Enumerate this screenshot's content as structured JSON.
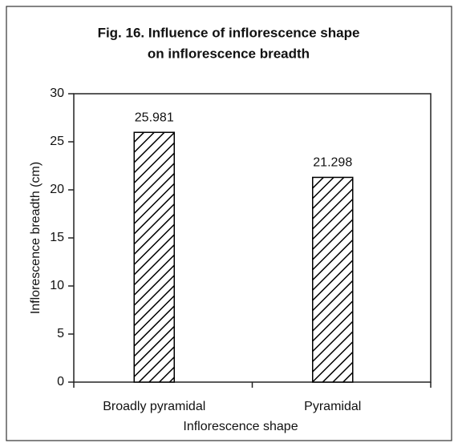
{
  "chart_data": {
    "type": "bar",
    "title": [
      "Fig. 16. Influence of inflorescence shape",
      "on inflorescence breadth"
    ],
    "x_label": "Inflorescence shape",
    "y_label": "Inflorescence breadth (cm)",
    "categories": [
      "Broadly pyramidal",
      "Pyramidal"
    ],
    "values": [
      25.981,
      21.298
    ],
    "color": "#000000",
    "ylim": [
      0,
      30
    ],
    "yticks": [
      0,
      5,
      10,
      15,
      20,
      25,
      30
    ]
  }
}
